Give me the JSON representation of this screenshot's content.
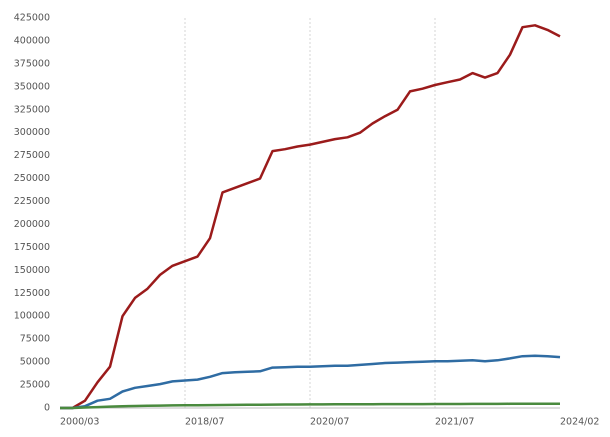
{
  "chart_data": {
    "type": "line",
    "categories": [
      "2000/03",
      null,
      null,
      null,
      null,
      null,
      null,
      null,
      null,
      null,
      "2018/07",
      null,
      null,
      null,
      null,
      null,
      null,
      null,
      null,
      null,
      "2020/07",
      null,
      null,
      null,
      null,
      null,
      null,
      null,
      null,
      null,
      "2021/07",
      null,
      null,
      null,
      null,
      null,
      null,
      null,
      null,
      null,
      "2024/02"
    ],
    "series": [
      {
        "color": "#9b1b1b",
        "values": [
          0,
          0,
          8000,
          28000,
          45000,
          100000,
          120000,
          130000,
          145000,
          155000,
          160000,
          165000,
          185000,
          235000,
          240000,
          245000,
          250000,
          280000,
          282000,
          285000,
          287000,
          290000,
          293000,
          295000,
          300000,
          310000,
          318000,
          325000,
          345000,
          348000,
          352000,
          355000,
          358000,
          365000,
          360000,
          365000,
          385000,
          415000,
          417000,
          412000,
          405000
        ]
      },
      {
        "color": "#2f6ca3",
        "values": [
          0,
          0,
          2000,
          8000,
          10000,
          18000,
          22000,
          24000,
          26000,
          29000,
          30000,
          31000,
          34000,
          38000,
          39000,
          39500,
          40000,
          44000,
          44500,
          45000,
          45000,
          45500,
          46000,
          46000,
          47000,
          48000,
          49000,
          49500,
          50000,
          50500,
          51000,
          51000,
          51500,
          52000,
          51000,
          52000,
          54000,
          56500,
          57000,
          56500,
          55500
        ]
      },
      {
        "color": "#4a8a3e",
        "values": [
          0,
          0,
          500,
          1000,
          1500,
          2000,
          2200,
          2400,
          2600,
          2800,
          3000,
          3100,
          3200,
          3300,
          3400,
          3500,
          3600,
          3700,
          3800,
          3800,
          3900,
          3900,
          4000,
          4000,
          4100,
          4100,
          4200,
          4200,
          4300,
          4300,
          4400,
          4400,
          4400,
          4500,
          4500,
          4500,
          4600,
          4600,
          4600,
          4700,
          4700
        ]
      }
    ],
    "ylim": [
      0,
      425000
    ],
    "yticks": [
      0,
      25000,
      50000,
      75000,
      100000,
      125000,
      150000,
      175000,
      200000,
      225000,
      250000,
      275000,
      300000,
      325000,
      350000,
      375000,
      400000,
      425000
    ],
    "grid": true
  }
}
